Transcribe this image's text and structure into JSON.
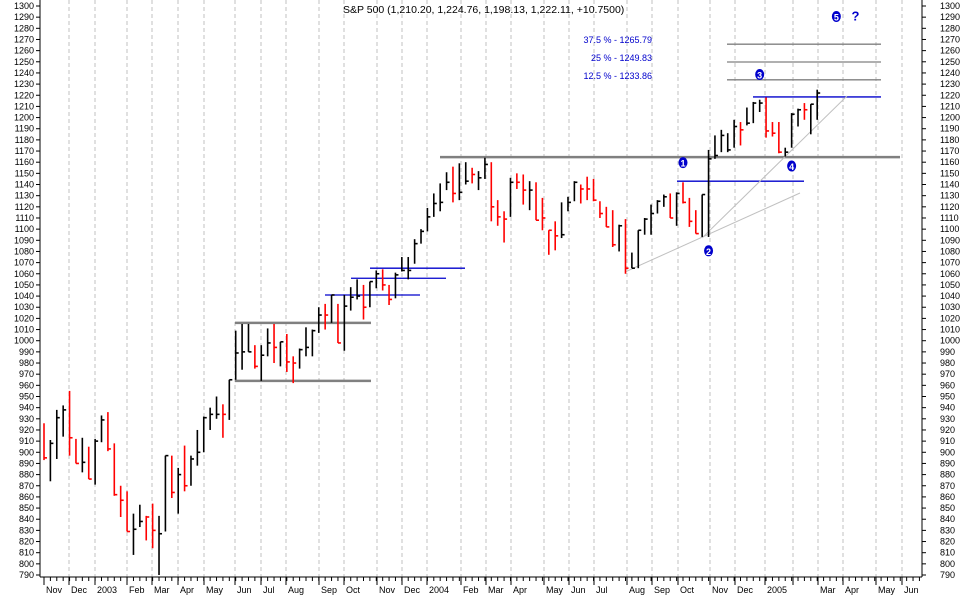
{
  "chart_data": {
    "type": "ohlc-bar",
    "title": "S&P 500 (1,210.20, 1,224.76, 1,198.13, 1,222.11, +10.7500)",
    "period": "weekly",
    "ylim": [
      790,
      1300
    ],
    "ytick_step": 10,
    "grid": "vertical-dashed-monthly",
    "colors": {
      "up": "#000000",
      "down": "#ff0000",
      "annotation": "#0000cc",
      "support": "#808080",
      "trend": "#c0c0c0",
      "grid": "#c0c0c0"
    },
    "x_labels": [
      "Nov",
      "Dec",
      "2003",
      "Feb",
      "Mar",
      "Apr",
      "May",
      "Jun",
      "Jul",
      "Aug",
      "Sep",
      "Oct",
      "Nov",
      "Dec",
      "2004",
      "Feb",
      "Mar",
      "Apr",
      "May",
      "Jun",
      "Jul",
      "Aug",
      "Sep",
      "Oct",
      "Nov",
      "Dec",
      "2005",
      "",
      "Mar",
      "Apr",
      "May",
      "Jun"
    ],
    "bars_hlc_dir": [
      [
        926,
        893,
        895,
        "d"
      ],
      [
        911,
        874,
        908,
        "u"
      ],
      [
        938,
        894,
        931,
        "u"
      ],
      [
        942,
        914,
        938,
        "u"
      ],
      [
        955,
        897,
        913,
        "d"
      ],
      [
        912,
        890,
        890,
        "d"
      ],
      [
        913,
        882,
        891,
        "u"
      ],
      [
        905,
        876,
        876,
        "d"
      ],
      [
        912,
        871,
        910,
        "u"
      ],
      [
        933,
        909,
        929,
        "u"
      ],
      [
        936,
        901,
        903,
        "d"
      ],
      [
        908,
        861,
        862,
        "d"
      ],
      [
        870,
        842,
        857,
        "d"
      ],
      [
        865,
        829,
        829,
        "d"
      ],
      [
        845,
        808,
        831,
        "u"
      ],
      [
        853,
        833,
        838,
        "u"
      ],
      [
        843,
        821,
        842,
        "d"
      ],
      [
        854,
        814,
        830,
        "d"
      ],
      [
        843,
        790,
        827,
        "u"
      ],
      [
        897,
        829,
        897,
        "u"
      ],
      [
        897,
        859,
        864,
        "d"
      ],
      [
        886,
        845,
        880,
        "u"
      ],
      [
        906,
        865,
        870,
        "d"
      ],
      [
        897,
        870,
        894,
        "u"
      ],
      [
        920,
        888,
        900,
        "u"
      ],
      [
        932,
        900,
        931,
        "u"
      ],
      [
        940,
        920,
        934,
        "u"
      ],
      [
        950,
        930,
        934,
        "u"
      ],
      [
        943,
        913,
        934,
        "d"
      ],
      [
        965,
        929,
        965,
        "u"
      ],
      [
        1009,
        965,
        989,
        "u"
      ],
      [
        1015,
        974,
        990,
        "u"
      ],
      [
        1015,
        990,
        990,
        "u"
      ],
      [
        996,
        975,
        977,
        "d"
      ],
      [
        996,
        964,
        987,
        "u"
      ],
      [
        1011,
        986,
        998,
        "u"
      ],
      [
        1015,
        980,
        994,
        "d"
      ],
      [
        999,
        977,
        999,
        "u"
      ],
      [
        1006,
        972,
        981,
        "d"
      ],
      [
        986,
        962,
        980,
        "d"
      ],
      [
        993,
        975,
        992,
        "u"
      ],
      [
        1012,
        986,
        994,
        "u"
      ],
      [
        1010,
        986,
        1009,
        "u"
      ],
      [
        1030,
        1007,
        1023,
        "u"
      ],
      [
        1033,
        1010,
        1023,
        "d"
      ],
      [
        1041,
        1016,
        1041,
        "u"
      ],
      [
        1033,
        998,
        998,
        "d"
      ],
      [
        1041,
        991,
        1031,
        "u"
      ],
      [
        1048,
        1027,
        1039,
        "u"
      ],
      [
        1055,
        1037,
        1040,
        "u"
      ],
      [
        1050,
        1019,
        1030,
        "d"
      ],
      [
        1053,
        1030,
        1053,
        "u"
      ],
      [
        1063,
        1047,
        1060,
        "u"
      ],
      [
        1064,
        1045,
        1050,
        "d"
      ],
      [
        1050,
        1032,
        1037,
        "d"
      ],
      [
        1061,
        1038,
        1059,
        "u"
      ],
      [
        1075,
        1062,
        1063,
        "u"
      ],
      [
        1075,
        1055,
        1063,
        "u"
      ],
      [
        1091,
        1069,
        1087,
        "u"
      ],
      [
        1100,
        1087,
        1098,
        "u"
      ],
      [
        1119,
        1098,
        1111,
        "u"
      ],
      [
        1132,
        1111,
        1123,
        "u"
      ],
      [
        1141,
        1116,
        1124,
        "u"
      ],
      [
        1151,
        1135,
        1142,
        "u"
      ],
      [
        1156,
        1124,
        1132,
        "d"
      ],
      [
        1159,
        1126,
        1133,
        "u"
      ],
      [
        1160,
        1140,
        1143,
        "u"
      ],
      [
        1155,
        1141,
        1149,
        "d"
      ],
      [
        1152,
        1135,
        1146,
        "u"
      ],
      [
        1164,
        1145,
        1158,
        "u"
      ],
      [
        1160,
        1107,
        1120,
        "d"
      ],
      [
        1126,
        1103,
        1111,
        "d"
      ],
      [
        1116,
        1088,
        1109,
        "d"
      ],
      [
        1146,
        1111,
        1142,
        "u"
      ],
      [
        1150,
        1136,
        1142,
        "d"
      ],
      [
        1149,
        1122,
        1135,
        "d"
      ],
      [
        1143,
        1117,
        1135,
        "u"
      ],
      [
        1142,
        1108,
        1108,
        "d"
      ],
      [
        1128,
        1099,
        1110,
        "d"
      ],
      [
        1099,
        1077,
        1099,
        "d"
      ],
      [
        1107,
        1081,
        1094,
        "d"
      ],
      [
        1124,
        1092,
        1095,
        "u"
      ],
      [
        1129,
        1116,
        1124,
        "u"
      ],
      [
        1143,
        1125,
        1142,
        "u"
      ],
      [
        1140,
        1123,
        1136,
        "d"
      ],
      [
        1147,
        1126,
        1136,
        "d"
      ],
      [
        1145,
        1125,
        1126,
        "d"
      ],
      [
        1125,
        1110,
        1114,
        "d"
      ],
      [
        1120,
        1102,
        1102,
        "d"
      ],
      [
        1117,
        1084,
        1086,
        "d"
      ],
      [
        1104,
        1080,
        1103,
        "u"
      ],
      [
        1109,
        1060,
        1065,
        "d"
      ],
      [
        1079,
        1065,
        1065,
        "u"
      ],
      [
        1099,
        1065,
        1099,
        "u"
      ],
      [
        1110,
        1095,
        1109,
        "u"
      ],
      [
        1122,
        1095,
        1114,
        "u"
      ],
      [
        1126,
        1114,
        1125,
        "u"
      ],
      [
        1131,
        1120,
        1129,
        "u"
      ],
      [
        1132,
        1110,
        1110,
        "d"
      ],
      [
        1133,
        1103,
        1132,
        "u"
      ],
      [
        1142,
        1123,
        1124,
        "d"
      ],
      [
        1128,
        1102,
        1107,
        "d"
      ],
      [
        1117,
        1096,
        1096,
        "d"
      ],
      [
        1131,
        1093,
        1131,
        "u"
      ],
      [
        1171,
        1093,
        1163,
        "u"
      ],
      [
        1184,
        1163,
        1166,
        "u"
      ],
      [
        1189,
        1169,
        1184,
        "u"
      ],
      [
        1186,
        1169,
        1171,
        "u"
      ],
      [
        1198,
        1173,
        1192,
        "u"
      ],
      [
        1196,
        1175,
        1189,
        "d"
      ],
      [
        1209,
        1193,
        1195,
        "u"
      ],
      [
        1214,
        1195,
        1213,
        "u"
      ],
      [
        1216,
        1205,
        1213,
        "u"
      ],
      [
        1218,
        1182,
        1188,
        "d"
      ],
      [
        1196,
        1183,
        1186,
        "d"
      ],
      [
        1196,
        1168,
        1169,
        "d"
      ],
      [
        1173,
        1165,
        1169,
        "u"
      ],
      [
        1204,
        1173,
        1203,
        "u"
      ],
      [
        1208,
        1192,
        1207,
        "u"
      ],
      [
        1213,
        1198,
        1207,
        "d"
      ],
      [
        1212,
        1185,
        1212,
        "u"
      ],
      [
        1225,
        1198,
        1222,
        "u"
      ]
    ],
    "support_resistance_levels": [
      1016,
      964,
      1065,
      1056,
      1041,
      1164.5,
      1143,
      1218.5
    ],
    "fibonacci_targets": [
      {
        "label": "37.5 % - 1265.79",
        "value": 1265.79
      },
      {
        "label": "25 % - 1249.83",
        "value": 1249.83
      },
      {
        "label": "12.5 % - 1233.86",
        "value": 1233.86
      }
    ],
    "wave_labels": [
      {
        "label": "1",
        "bar": 100,
        "value": 1156
      },
      {
        "label": "2",
        "bar": 104,
        "value": 1077
      },
      {
        "label": "3",
        "bar": 112,
        "value": 1235
      },
      {
        "label": "4",
        "bar": 117,
        "value": 1153
      },
      {
        "label": "5",
        "bar": 124,
        "value": 1287
      },
      {
        "label": "?",
        "bar": 127,
        "value": 1287
      }
    ]
  }
}
